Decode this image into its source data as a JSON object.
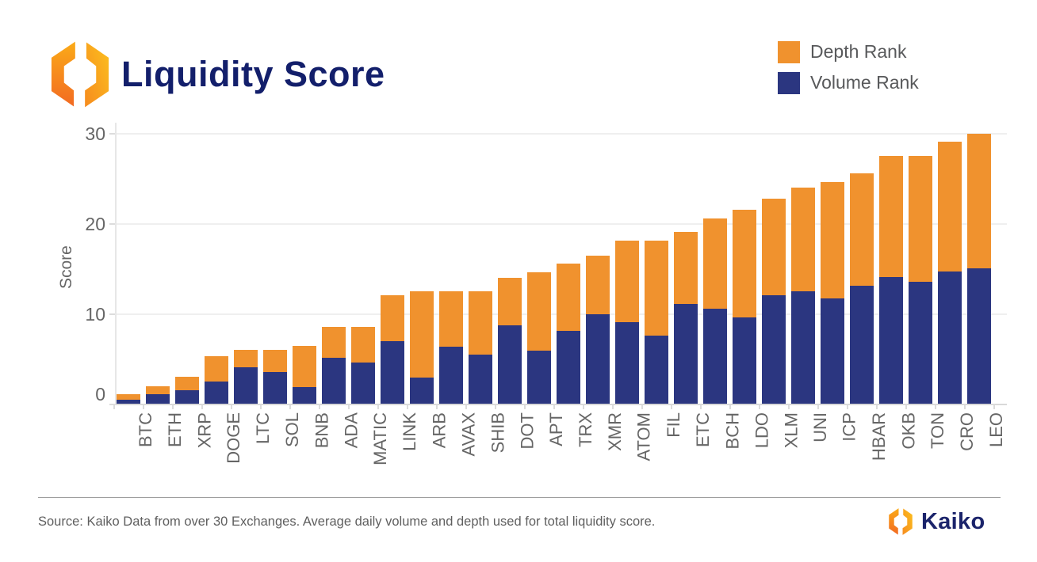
{
  "header": {
    "title": "Liquidity Score"
  },
  "legend": [
    {
      "label": "Depth Rank",
      "color": "#F0922E"
    },
    {
      "label": "Volume Rank",
      "color": "#2B3680"
    }
  ],
  "icons": {
    "kaiko_mark": "kaiko-hexagon-logo"
  },
  "chart_data": {
    "type": "bar",
    "stacked": true,
    "title": "Liquidity Score",
    "xlabel": "",
    "ylabel": "Score",
    "ylim": [
      0,
      30
    ],
    "yticks": [
      0,
      10,
      20,
      30
    ],
    "grid": "horizontal",
    "legend_position": "top-right",
    "categories": [
      "BTC",
      "ETH",
      "XRP",
      "DOGE",
      "LTC",
      "SOL",
      "BNB",
      "ADA",
      "MATIC",
      "LINK",
      "ARB",
      "AVAX",
      "SHIB",
      "DOT",
      "APT",
      "TRX",
      "XMR",
      "ATOM",
      "FIL",
      "ETC",
      "BCH",
      "LDO",
      "XLM",
      "UNI",
      "ICP",
      "HBAR",
      "OKB",
      "TON",
      "CRO",
      "LEO"
    ],
    "series": [
      {
        "name": "Volume Rank",
        "color": "#2B3680",
        "values": [
          0.5,
          1.1,
          1.5,
          2.5,
          4.1,
          3.6,
          1.9,
          5.1,
          4.6,
          7.0,
          2.9,
          6.4,
          5.5,
          8.7,
          5.9,
          8.1,
          10.0,
          9.1,
          7.6,
          11.1,
          10.6,
          9.6,
          12.1,
          12.5,
          11.7,
          13.1,
          14.1,
          13.6,
          14.7,
          15.1
        ]
      },
      {
        "name": "Depth Rank",
        "color": "#F0922E",
        "values": [
          0.6,
          0.9,
          1.5,
          2.8,
          1.9,
          2.4,
          4.6,
          3.5,
          4.0,
          5.1,
          9.6,
          6.1,
          7.0,
          5.3,
          8.7,
          7.5,
          6.5,
          9.0,
          10.5,
          8.0,
          10.0,
          12.0,
          10.7,
          11.5,
          12.9,
          12.5,
          13.4,
          13.9,
          14.4,
          14.9
        ]
      }
    ],
    "totals": [
      1.1,
      2.0,
      3.0,
      5.3,
      6.0,
      6.0,
      6.5,
      8.6,
      8.6,
      12.1,
      12.5,
      12.5,
      12.5,
      14.0,
      14.6,
      15.6,
      16.5,
      18.1,
      18.1,
      19.1,
      20.6,
      21.6,
      22.8,
      24.0,
      24.6,
      25.6,
      27.5,
      27.5,
      29.1,
      30.0
    ]
  },
  "footer": {
    "source_text": "Source: Kaiko Data from over 30 Exchanges. Average daily volume and depth used for total liquidity score.",
    "brand": "Kaiko"
  }
}
